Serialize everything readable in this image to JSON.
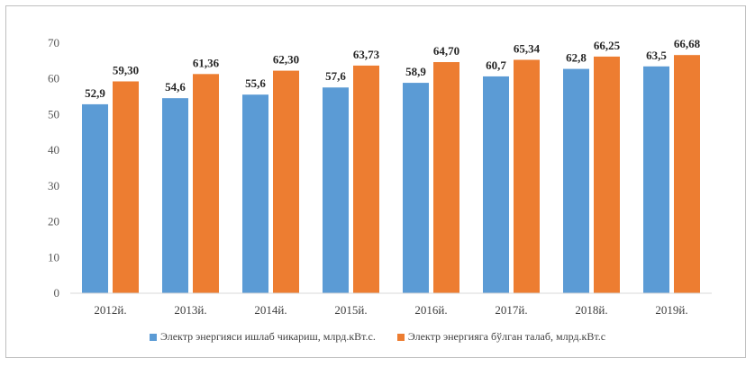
{
  "chart_data": {
    "type": "bar",
    "categories": [
      "2012й.",
      "2013й.",
      "2014й.",
      "2015й.",
      "2016й.",
      "2017й.",
      "2018й.",
      "2019й."
    ],
    "series": [
      {
        "name": "Электр энергияси ишлаб чикариш, млрд.кВт.с.",
        "values": [
          52.9,
          54.6,
          55.6,
          57.6,
          58.9,
          60.7,
          62.8,
          63.5
        ],
        "labels": [
          "52,9",
          "54,6",
          "55,6",
          "57,6",
          "58,9",
          "60,7",
          "62,8",
          "63,5"
        ],
        "color": "#5b9bd5"
      },
      {
        "name": "Электр энергияга бўлган талаб, млрд.кВт.с",
        "values": [
          59.3,
          61.36,
          62.3,
          63.73,
          64.7,
          65.34,
          66.25,
          66.68
        ],
        "labels": [
          "59,30",
          "61,36",
          "62,30",
          "63,73",
          "64,70",
          "65,34",
          "66,25",
          "66,68"
        ],
        "color": "#ed7d31"
      }
    ],
    "yticks": [
      "0",
      "10",
      "20",
      "30",
      "40",
      "50",
      "60",
      "70"
    ],
    "ylim": [
      0,
      70
    ],
    "grid": false,
    "legend_position": "bottom"
  }
}
